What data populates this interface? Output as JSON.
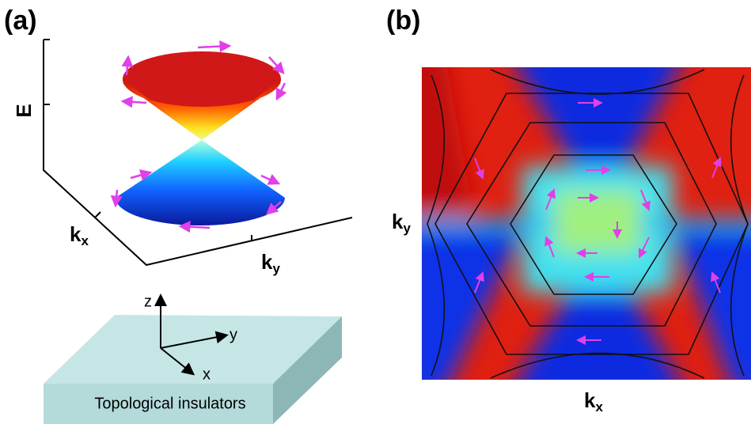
{
  "panel_a": {
    "label": "(a)",
    "axis_e": "E",
    "axis_kx": {
      "base": "k",
      "sub": "x"
    },
    "axis_ky": {
      "base": "k",
      "sub": "y"
    },
    "coords": {
      "z": "z",
      "y": "y",
      "x": "x"
    },
    "slab_label": "Topological insulators"
  },
  "panel_b": {
    "label": "(b)",
    "axis_kx": {
      "base": "k",
      "sub": "x"
    },
    "axis_ky": {
      "base": "k",
      "sub": "y"
    }
  }
}
